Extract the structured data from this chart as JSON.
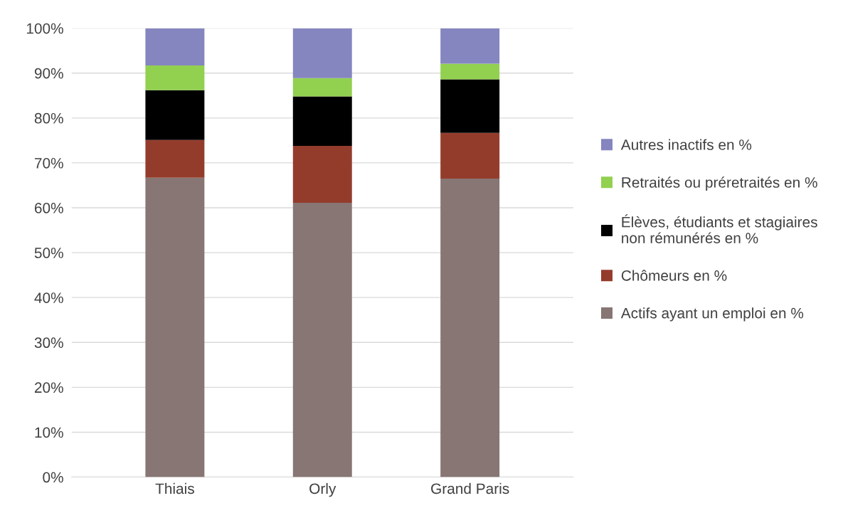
{
  "chart_data": {
    "type": "bar",
    "stacked": true,
    "categories": [
      "Thiais",
      "Orly",
      "Grand Paris"
    ],
    "series": [
      {
        "name": "Actifs ayant un emploi en %",
        "color": "#877674",
        "values": [
          66.7,
          61.1,
          66.5
        ]
      },
      {
        "name": "Chômeurs en %",
        "color": "#943c2c",
        "values": [
          8.4,
          12.7,
          10.2
        ]
      },
      {
        "name": "Élèves, étudiants et stagiaires non rémunérés en %",
        "color": "#000000",
        "values": [
          11.1,
          11.0,
          11.9
        ]
      },
      {
        "name": "Retraités ou préretraités en %",
        "color": "#92d050",
        "values": [
          5.5,
          4.1,
          3.5
        ]
      },
      {
        "name": "Autres inactifs en %",
        "color": "#8585c0",
        "values": [
          8.3,
          11.1,
          7.9
        ]
      }
    ],
    "ylim": [
      0,
      100
    ],
    "yticks": [
      {
        "value": 0,
        "label": "0%"
      },
      {
        "value": 10,
        "label": "10%"
      },
      {
        "value": 20,
        "label": "20%"
      },
      {
        "value": 30,
        "label": "30%"
      },
      {
        "value": 40,
        "label": "40%"
      },
      {
        "value": 50,
        "label": "50%"
      },
      {
        "value": 60,
        "label": "60%"
      },
      {
        "value": 70,
        "label": "70%"
      },
      {
        "value": 80,
        "label": "80%"
      },
      {
        "value": 90,
        "label": "90%"
      },
      {
        "value": 100,
        "label": "100%"
      }
    ],
    "grid": "y",
    "legend": "right"
  }
}
